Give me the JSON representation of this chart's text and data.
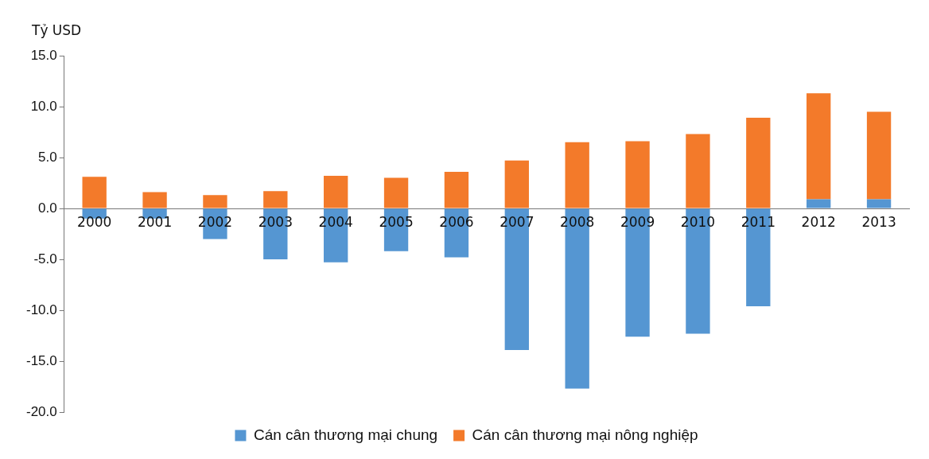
{
  "chart_data": {
    "type": "bar",
    "ylabel": "Tỷ USD",
    "categories": [
      "2000",
      "2001",
      "2002",
      "2003",
      "2004",
      "2005",
      "2006",
      "2007",
      "2008",
      "2009",
      "2010",
      "2011",
      "2012",
      "2013"
    ],
    "series": [
      {
        "name": "Cán cân thương mại chung",
        "color": "#5596d2",
        "values": [
          -1.0,
          -1.0,
          -3.0,
          -5.0,
          -5.3,
          -4.2,
          -4.8,
          -13.9,
          -17.7,
          -12.6,
          -12.3,
          -9.6,
          0.9,
          0.9
        ]
      },
      {
        "name": "Cán cân thương mại nông nghiệp",
        "color": "#f37a2a",
        "values": [
          3.1,
          1.6,
          1.3,
          1.7,
          3.2,
          3.0,
          3.6,
          4.7,
          6.5,
          6.6,
          7.3,
          8.9,
          10.4,
          8.6
        ]
      }
    ],
    "ylim": [
      -20,
      15
    ],
    "yticks": [
      {
        "value": -20,
        "label": "-20.0"
      },
      {
        "value": -15,
        "label": "-15.0"
      },
      {
        "value": -10,
        "label": "-10.0"
      },
      {
        "value": -5,
        "label": "-5.0"
      },
      {
        "value": 0,
        "label": "0.0"
      },
      {
        "value": 5,
        "label": "5.0"
      },
      {
        "value": 10,
        "label": "10.0"
      },
      {
        "value": 15,
        "label": "15.0"
      }
    ],
    "stacked": true,
    "grid": false,
    "legend": "bottom"
  }
}
